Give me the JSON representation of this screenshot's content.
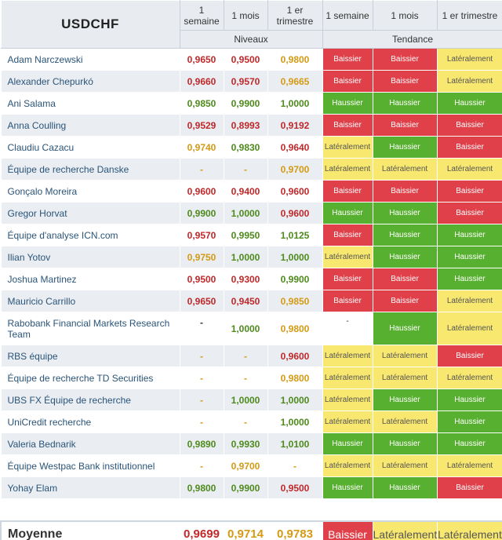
{
  "header": {
    "title": "USDCHF",
    "periods": [
      "1 semaine",
      "1 mois",
      "1 er trimestre"
    ],
    "levels_label": "Niveaux",
    "trend_label": "Tendance"
  },
  "colors": {
    "bearish": "#e0404a",
    "bullish": "#58b030",
    "sideways": "#f8e870",
    "red_value": "#c0282a",
    "green_value": "#4e8a1c",
    "orange_value": "#d49a14"
  },
  "rows": [
    {
      "name": "Adam Narczewski",
      "levels": [
        [
          "0,9650",
          "red"
        ],
        [
          "0,9500",
          "red"
        ],
        [
          "0,9800",
          "orange"
        ]
      ],
      "trends": [
        [
          "Baissier",
          "bear"
        ],
        [
          "Baissier",
          "bear"
        ],
        [
          "Latéralement",
          "lat"
        ]
      ]
    },
    {
      "name": "Alexander Chepurkó",
      "levels": [
        [
          "0,9660",
          "red"
        ],
        [
          "0,9570",
          "red"
        ],
        [
          "0,9665",
          "orange"
        ]
      ],
      "trends": [
        [
          "Baissier",
          "bear"
        ],
        [
          "Baissier",
          "bear"
        ],
        [
          "Latéralement",
          "lat"
        ]
      ]
    },
    {
      "name": "Ani Salama",
      "levels": [
        [
          "0,9850",
          "green"
        ],
        [
          "0,9900",
          "green"
        ],
        [
          "1,0000",
          "green"
        ]
      ],
      "trends": [
        [
          "Haussier",
          "bull"
        ],
        [
          "Haussier",
          "bull"
        ],
        [
          "Haussier",
          "bull"
        ]
      ]
    },
    {
      "name": "Anna Coulling",
      "levels": [
        [
          "0,9529",
          "red"
        ],
        [
          "0,8993",
          "red"
        ],
        [
          "0,9192",
          "red"
        ]
      ],
      "trends": [
        [
          "Baissier",
          "bear"
        ],
        [
          "Baissier",
          "bear"
        ],
        [
          "Baissier",
          "bear"
        ]
      ]
    },
    {
      "name": "Claudiu Cazacu",
      "levels": [
        [
          "0,9740",
          "orange"
        ],
        [
          "0,9830",
          "green"
        ],
        [
          "0,9640",
          "red"
        ]
      ],
      "trends": [
        [
          "Latéralement",
          "lat"
        ],
        [
          "Haussier",
          "bull"
        ],
        [
          "Baissier",
          "bear"
        ]
      ]
    },
    {
      "name": "Équipe de recherche Danske",
      "levels": [
        [
          "-",
          "dash-o"
        ],
        [
          "-",
          "dash-o"
        ],
        [
          "0,9700",
          "orange"
        ]
      ],
      "trends": [
        [
          "Latéralement",
          "lat"
        ],
        [
          "Latéralement",
          "lat"
        ],
        [
          "Latéralement",
          "lat"
        ]
      ]
    },
    {
      "name": "Gonçalo Moreira",
      "levels": [
        [
          "0,9600",
          "red"
        ],
        [
          "0,9400",
          "red"
        ],
        [
          "0,9600",
          "red"
        ]
      ],
      "trends": [
        [
          "Baissier",
          "bear"
        ],
        [
          "Baissier",
          "bear"
        ],
        [
          "Baissier",
          "bear"
        ]
      ]
    },
    {
      "name": "Gregor Horvat",
      "levels": [
        [
          "0,9900",
          "green"
        ],
        [
          "1,0000",
          "green"
        ],
        [
          "0,9600",
          "red"
        ]
      ],
      "trends": [
        [
          "Haussier",
          "bull"
        ],
        [
          "Haussier",
          "bull"
        ],
        [
          "Baissier",
          "bear"
        ]
      ]
    },
    {
      "name": "Équipe d'analyse ICN.com",
      "levels": [
        [
          "0,9570",
          "red"
        ],
        [
          "0,9950",
          "green"
        ],
        [
          "1,0125",
          "green"
        ]
      ],
      "trends": [
        [
          "Baissier",
          "bear"
        ],
        [
          "Haussier",
          "bull"
        ],
        [
          "Haussier",
          "bull"
        ]
      ]
    },
    {
      "name": "Ilian Yotov",
      "levels": [
        [
          "0,9750",
          "orange"
        ],
        [
          "1,0000",
          "green"
        ],
        [
          "1,0000",
          "green"
        ]
      ],
      "trends": [
        [
          "Latéralement",
          "lat"
        ],
        [
          "Haussier",
          "bull"
        ],
        [
          "Haussier",
          "bull"
        ]
      ]
    },
    {
      "name": "Joshua Martinez",
      "levels": [
        [
          "0,9500",
          "red"
        ],
        [
          "0,9300",
          "red"
        ],
        [
          "0,9900",
          "green"
        ]
      ],
      "trends": [
        [
          "Baissier",
          "bear"
        ],
        [
          "Baissier",
          "bear"
        ],
        [
          "Haussier",
          "bull"
        ]
      ]
    },
    {
      "name": "Mauricio Carrillo",
      "levels": [
        [
          "0,9650",
          "red"
        ],
        [
          "0,9450",
          "red"
        ],
        [
          "0,9850",
          "orange"
        ]
      ],
      "trends": [
        [
          "Baissier",
          "bear"
        ],
        [
          "Baissier",
          "bear"
        ],
        [
          "Latéralement",
          "lat"
        ]
      ]
    },
    {
      "name": "Rabobank Financial Markets Research Team",
      "tall": true,
      "levels": [
        [
          "-",
          "dash"
        ],
        [
          "1,0000",
          "green"
        ],
        [
          "0,9800",
          "orange"
        ]
      ],
      "trends": [
        [
          "-",
          "none"
        ],
        [
          "Haussier",
          "bull"
        ],
        [
          "Latéralement",
          "lat"
        ]
      ]
    },
    {
      "name": "RBS équipe",
      "levels": [
        [
          "-",
          "dash-o"
        ],
        [
          "-",
          "dash-o"
        ],
        [
          "0,9600",
          "red"
        ]
      ],
      "trends": [
        [
          "Latéralement",
          "lat"
        ],
        [
          "Latéralement",
          "lat"
        ],
        [
          "Baissier",
          "bear"
        ]
      ]
    },
    {
      "name": "Équipe de recherche TD Securities",
      "levels": [
        [
          "-",
          "dash-o"
        ],
        [
          "-",
          "dash-o"
        ],
        [
          "0,9800",
          "orange"
        ]
      ],
      "trends": [
        [
          "Latéralement",
          "lat"
        ],
        [
          "Latéralement",
          "lat"
        ],
        [
          "Latéralement",
          "lat"
        ]
      ]
    },
    {
      "name": "UBS FX Équipe de recherche",
      "levels": [
        [
          "-",
          "dash-o"
        ],
        [
          "1,0000",
          "green"
        ],
        [
          "1,0000",
          "green"
        ]
      ],
      "trends": [
        [
          "Latéralement",
          "lat"
        ],
        [
          "Haussier",
          "bull"
        ],
        [
          "Haussier",
          "bull"
        ]
      ]
    },
    {
      "name": "UniCredit recherche",
      "levels": [
        [
          "-",
          "dash-o"
        ],
        [
          "-",
          "dash-o"
        ],
        [
          "1,0000",
          "green"
        ]
      ],
      "trends": [
        [
          "Latéralement",
          "lat"
        ],
        [
          "Latéralement",
          "lat"
        ],
        [
          "Haussier",
          "bull"
        ]
      ]
    },
    {
      "name": "Valeria Bednarik",
      "levels": [
        [
          "0,9890",
          "green"
        ],
        [
          "0,9930",
          "green"
        ],
        [
          "1,0100",
          "green"
        ]
      ],
      "trends": [
        [
          "Haussier",
          "bull"
        ],
        [
          "Haussier",
          "bull"
        ],
        [
          "Haussier",
          "bull"
        ]
      ]
    },
    {
      "name": "Équipe Westpac Bank institutionnel",
      "levels": [
        [
          "-",
          "dash-o"
        ],
        [
          "0,9700",
          "orange"
        ],
        [
          "-",
          "dash-o"
        ]
      ],
      "trends": [
        [
          "Latéralement",
          "lat"
        ],
        [
          "Latéralement",
          "lat"
        ],
        [
          "Latéralement",
          "lat"
        ]
      ]
    },
    {
      "name": "Yohay Elam",
      "levels": [
        [
          "0,9800",
          "green"
        ],
        [
          "0,9900",
          "green"
        ],
        [
          "0,9500",
          "red"
        ]
      ],
      "trends": [
        [
          "Haussier",
          "bull"
        ],
        [
          "Haussier",
          "bull"
        ],
        [
          "Baissier",
          "bear"
        ]
      ]
    }
  ],
  "average": {
    "label": "Moyenne",
    "levels": [
      [
        "0,9699",
        "red"
      ],
      [
        "0,9714",
        "orange"
      ],
      [
        "0,9783",
        "orange"
      ]
    ],
    "trends": [
      [
        "Baissier",
        "bear"
      ],
      [
        "Latéralement",
        "lat"
      ],
      [
        "Latéralement",
        "lat"
      ]
    ]
  }
}
